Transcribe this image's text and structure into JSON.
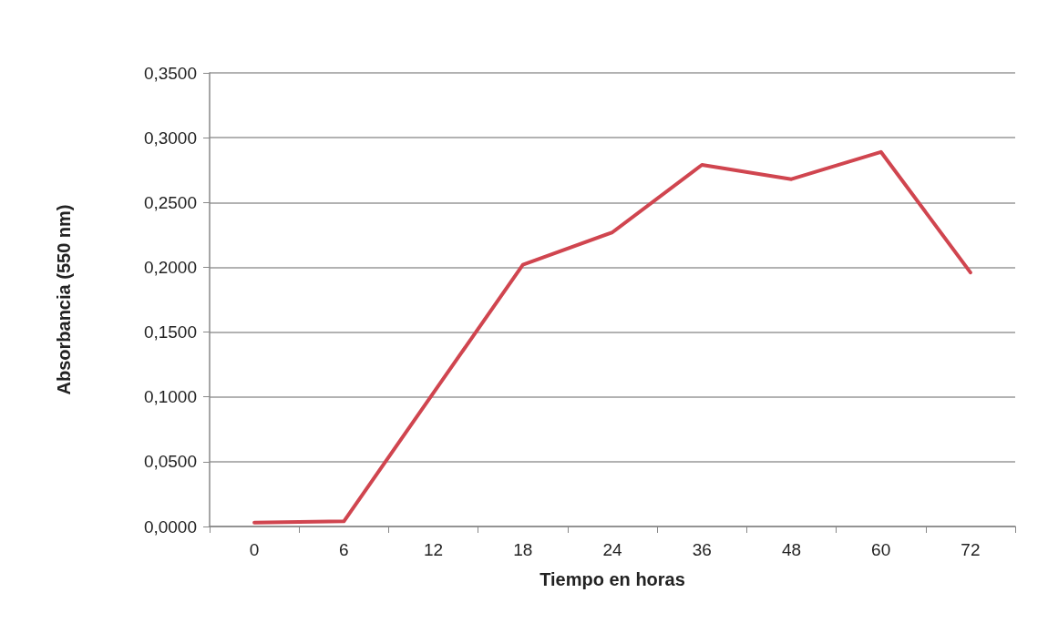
{
  "chart_data": {
    "type": "line",
    "xlabel": "Tiempo en horas",
    "ylabel": "Absorbancia (550 nm)",
    "categories": [
      "0",
      "6",
      "12",
      "18",
      "24",
      "36",
      "48",
      "60",
      "72"
    ],
    "series": [
      {
        "color": "#d0454f",
        "values": [
          0.003,
          0.004,
          0.103,
          0.202,
          0.227,
          0.279,
          0.268,
          0.289,
          0.196
        ]
      }
    ],
    "ylim": [
      0,
      0.35
    ],
    "yticks": [
      {
        "value": 0,
        "label": "0,0000"
      },
      {
        "value": 0.05,
        "label": "0,0500"
      },
      {
        "value": 0.1,
        "label": "0,1000"
      },
      {
        "value": 0.15,
        "label": "0,1500"
      },
      {
        "value": 0.2,
        "label": "0,2000"
      },
      {
        "value": 0.25,
        "label": "0,2500"
      },
      {
        "value": 0.3,
        "label": "0,3000"
      },
      {
        "value": 0.35,
        "label": "0,3500"
      }
    ],
    "grid": "y",
    "marker": "none",
    "line_style": "solid"
  }
}
